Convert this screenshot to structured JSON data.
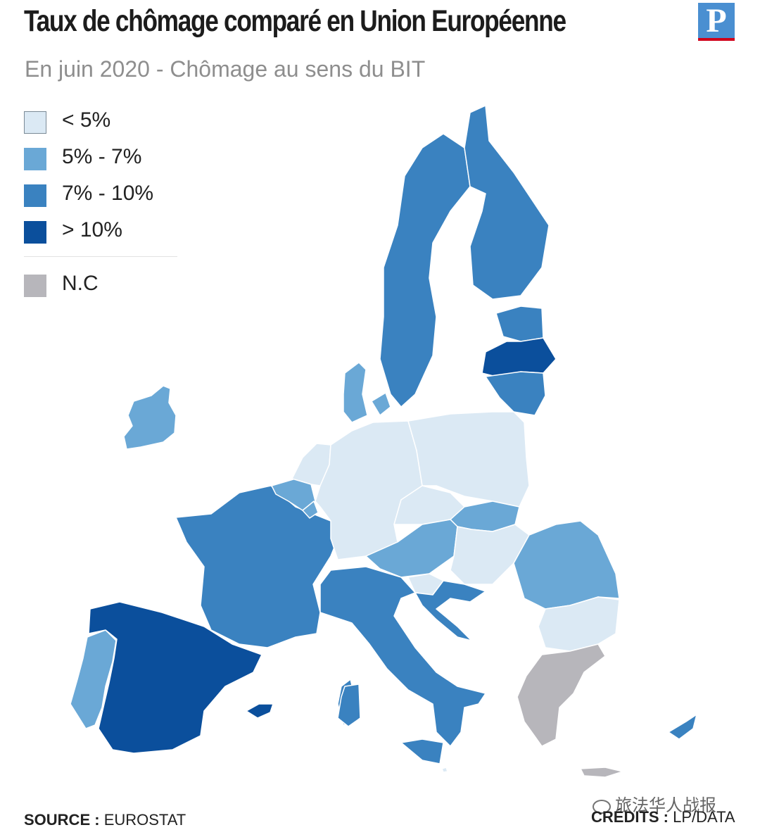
{
  "header": {
    "title": "Taux de chômage comparé en Union Européenne",
    "subtitle": "En juin 2020 - Chômage au sens du BIT",
    "logo_letter": "P"
  },
  "legend": {
    "items": [
      {
        "label": "< 5%",
        "color": "#dbe9f4"
      },
      {
        "label": "5% - 7%",
        "color": "#6aa8d6"
      },
      {
        "label": "7% - 10%",
        "color": "#3a82c0"
      },
      {
        "label": "> 10%",
        "color": "#0b4f9c"
      }
    ],
    "nc": {
      "label": "N.C",
      "color": "#b7b6bb"
    }
  },
  "colors": {
    "low": "#dbe9f4",
    "mid_low": "#6aa8d6",
    "mid_high": "#3a82c0",
    "high": "#0b4f9c",
    "nc": "#b7b6bb",
    "border": "#ffffff"
  },
  "map": {
    "regions": [
      {
        "country": "Ireland",
        "class": "5% - 7%"
      },
      {
        "country": "Portugal",
        "class": "5% - 7%"
      },
      {
        "country": "Spain",
        "class": "> 10%"
      },
      {
        "country": "France",
        "class": "7% - 10%"
      },
      {
        "country": "Belgium",
        "class": "5% - 7%"
      },
      {
        "country": "Netherlands",
        "class": "< 5%"
      },
      {
        "country": "Luxembourg",
        "class": "5% - 7%"
      },
      {
        "country": "Germany",
        "class": "< 5%"
      },
      {
        "country": "Denmark",
        "class": "5% - 7%"
      },
      {
        "country": "Sweden",
        "class": "7% - 10%"
      },
      {
        "country": "Finland",
        "class": "7% - 10%"
      },
      {
        "country": "Estonia",
        "class": "7% - 10%"
      },
      {
        "country": "Latvia",
        "class": "> 10%"
      },
      {
        "country": "Lithuania",
        "class": "7% - 10%"
      },
      {
        "country": "Poland",
        "class": "< 5%"
      },
      {
        "country": "Czechia",
        "class": "< 5%"
      },
      {
        "country": "Slovakia",
        "class": "5% - 7%"
      },
      {
        "country": "Austria",
        "class": "5% - 7%"
      },
      {
        "country": "Hungary",
        "class": "< 5%"
      },
      {
        "country": "Slovenia",
        "class": "< 5%"
      },
      {
        "country": "Italy",
        "class": "7% - 10%"
      },
      {
        "country": "Croatia",
        "class": "7% - 10%"
      },
      {
        "country": "Romania",
        "class": "5% - 7%"
      },
      {
        "country": "Bulgaria",
        "class": "< 5%"
      },
      {
        "country": "Greece",
        "class": "N.C"
      },
      {
        "country": "Cyprus",
        "class": "7% - 10%"
      },
      {
        "country": "Malta",
        "class": "< 5%"
      }
    ]
  },
  "footer": {
    "source_label": "SOURCE :",
    "source_value": "EUROSTAT",
    "credits_label": "CRÉDITS :",
    "credits_value": "LP/DATA"
  },
  "watermark": {
    "text": "旅法华人战报"
  }
}
